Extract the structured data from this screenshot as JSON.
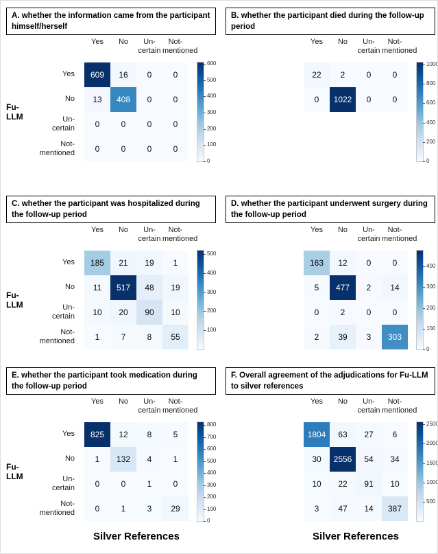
{
  "figure": {
    "y_axis_label": "Fu-LLM",
    "x_axis_label": "Silver References",
    "row_labels": [
      [
        "Yes"
      ],
      [
        "No"
      ],
      [
        "Un-",
        "certain"
      ],
      [
        "Not-",
        "mentioned"
      ]
    ],
    "col_labels": [
      [
        "Yes"
      ],
      [
        "No"
      ],
      [
        "Un-",
        "certain"
      ],
      [
        "Not-",
        "mentioned"
      ]
    ]
  },
  "colors": {
    "colormap_stops": [
      "#f7fbff",
      "#deebf7",
      "#c6dbef",
      "#9ecae1",
      "#6baed6",
      "#4292c6",
      "#2171b5",
      "#08519c",
      "#08306b"
    ],
    "cell_text_dark": "#0a0a0a",
    "cell_text_light": "#ffffff"
  },
  "chart_data": [
    {
      "type": "heatmap",
      "panel": "A",
      "title": "A. whether the information came from the participant himself/herself",
      "x": [
        "Yes",
        "No",
        "Un-certain",
        "Not-mentioned"
      ],
      "y": [
        "Yes",
        "No",
        "Un-certain",
        "Not-mentioned"
      ],
      "values": [
        [
          609,
          16,
          0,
          0
        ],
        [
          13,
          408,
          0,
          0
        ],
        [
          0,
          0,
          0,
          0
        ],
        [
          0,
          0,
          0,
          0
        ]
      ],
      "colorbar_ticks": [
        "600",
        "500",
        "400",
        "300",
        "200",
        "100",
        "0"
      ],
      "show_row_labels": true,
      "show_y_axis_label": true
    },
    {
      "type": "heatmap",
      "panel": "B",
      "title": "B. whether the participant died during the follow-up period",
      "x": [
        "Yes",
        "No",
        "Un-certain",
        "Not-mentioned"
      ],
      "y": [
        "Yes",
        "No"
      ],
      "values": [
        [
          22,
          2,
          0,
          0
        ],
        [
          0,
          1022,
          0,
          0
        ]
      ],
      "colorbar_ticks": [
        "1000",
        "800",
        "600",
        "400",
        "200",
        "0"
      ],
      "show_row_labels": false,
      "show_y_axis_label": false
    },
    {
      "type": "heatmap",
      "panel": "C",
      "title": "C. whether the participant was hospitalized during the follow-up period",
      "x": [
        "Yes",
        "No",
        "Un-certain",
        "Not-mentioned"
      ],
      "y": [
        "Yes",
        "No",
        "Un-certain",
        "Not-mentioned"
      ],
      "values": [
        [
          185,
          21,
          19,
          1
        ],
        [
          11,
          517,
          48,
          19
        ],
        [
          10,
          20,
          90,
          10
        ],
        [
          1,
          7,
          8,
          55
        ]
      ],
      "colorbar_ticks": [
        "500",
        "400",
        "300",
        "200",
        "100"
      ],
      "show_row_labels": true,
      "show_y_axis_label": true
    },
    {
      "type": "heatmap",
      "panel": "D",
      "title": "D. whether the participant underwent surgery during the follow-up period",
      "x": [
        "Yes",
        "No",
        "Un-certain",
        "Not-mentioned"
      ],
      "y": [
        "Yes",
        "No",
        "Un-certain",
        "Not-mentioned"
      ],
      "values": [
        [
          163,
          12,
          0,
          0
        ],
        [
          5,
          477,
          2,
          14
        ],
        [
          0,
          2,
          0,
          0
        ],
        [
          2,
          39,
          3,
          303
        ]
      ],
      "colorbar_ticks": [
        "400",
        "300",
        "200",
        "100",
        "0"
      ],
      "show_row_labels": false,
      "show_y_axis_label": false
    },
    {
      "type": "heatmap",
      "panel": "E",
      "title": "E. whether the participant took medication during the follow-up period",
      "x": [
        "Yes",
        "No",
        "Un-certain",
        "Not-mentioned"
      ],
      "y": [
        "Yes",
        "No",
        "Un-certain",
        "Not-mentioned"
      ],
      "values": [
        [
          825,
          12,
          8,
          5
        ],
        [
          1,
          132,
          4,
          1
        ],
        [
          0,
          0,
          1,
          0
        ],
        [
          0,
          1,
          3,
          29
        ]
      ],
      "colorbar_ticks": [
        "800",
        "700",
        "600",
        "500",
        "400",
        "300",
        "200",
        "100",
        "0"
      ],
      "show_row_labels": true,
      "show_y_axis_label": true
    },
    {
      "type": "heatmap",
      "panel": "F",
      "title": "F. Overall agreement of the adjudications for Fu-LLM to silver references",
      "x": [
        "Yes",
        "No",
        "Un-certain",
        "Not-mentioned"
      ],
      "y": [
        "Yes",
        "No",
        "Un-certain",
        "Not-mentioned"
      ],
      "values": [
        [
          1804,
          63,
          27,
          6
        ],
        [
          30,
          2556,
          54,
          34
        ],
        [
          10,
          22,
          91,
          10
        ],
        [
          3,
          47,
          14,
          387
        ]
      ],
      "colorbar_ticks": [
        "2500",
        "2000",
        "1500",
        "1000",
        "500"
      ],
      "show_row_labels": false,
      "show_y_axis_label": false
    }
  ]
}
